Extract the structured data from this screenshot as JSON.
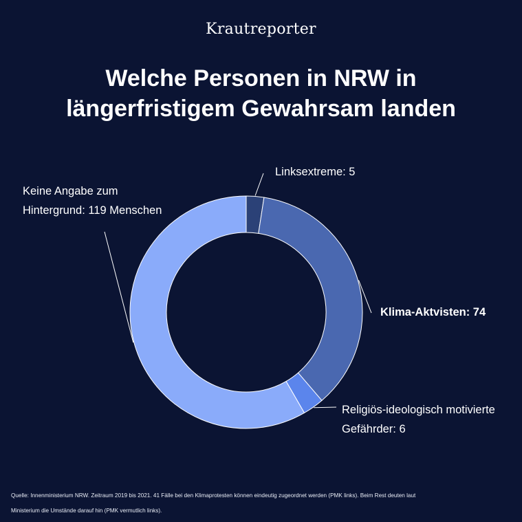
{
  "brand": "Krautreporter",
  "title_lines": [
    "Welche Personen in NRW in",
    "längerfristigem Gewahrsam landen"
  ],
  "chart_data": {
    "type": "pie",
    "donut": true,
    "slices": [
      {
        "label_lines": [
          "Linksextreme: 5"
        ],
        "value": 5,
        "color": "#2b4177",
        "bold": false
      },
      {
        "label_lines": [
          "Klima-Aktvisten: 74"
        ],
        "value": 74,
        "color": "#4a68b0",
        "bold": true
      },
      {
        "label_lines": [
          "Religiös-ideologisch motivierte",
          "Gefährder: 6"
        ],
        "value": 6,
        "color": "#5b85ec",
        "bold": false
      },
      {
        "label_lines": [
          "Keine Angabe zum",
          "Hintergrund: 119 Menschen"
        ],
        "value": 119,
        "color": "#8aabfa",
        "bold": false
      }
    ]
  },
  "source_lines": [
    "Quelle: Innenministerium NRW. Zeitraum 2019 bis 2021. 41 Fälle bei den Klimaprotesten können eindeutig zugeordnet werden (PMK links). Beim Rest deuten laut",
    "Ministerium die Umstände darauf hin (PMK vermutlich links)."
  ]
}
